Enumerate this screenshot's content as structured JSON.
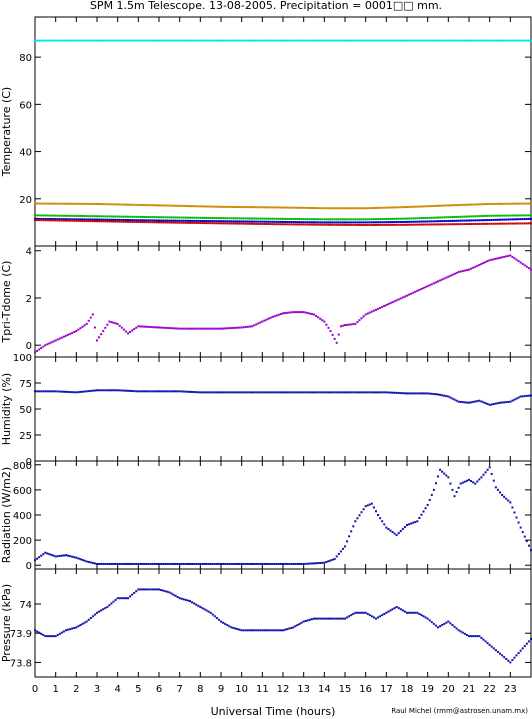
{
  "title": "SPM 1.5m Telescope. 13-08-2005. Precipitation = 0001□□ mm.",
  "credit": "Raul Michel (rmm@astrosen.unam.mx)",
  "x_axis": {
    "label": "Universal Time (hours)",
    "range": [
      0,
      24
    ],
    "ticks": [
      0,
      1,
      2,
      3,
      4,
      5,
      6,
      7,
      8,
      9,
      10,
      11,
      12,
      13,
      14,
      15,
      16,
      17,
      18,
      19,
      20,
      21,
      22,
      23
    ]
  },
  "chart_data": [
    {
      "type": "scatter",
      "panel": "temperature",
      "ylabel": "Temperature (C)",
      "ylim": [
        0,
        97
      ],
      "yticks": [
        20,
        40,
        60,
        80
      ],
      "series": [
        {
          "color": "#00e5e5",
          "x": [
            0,
            24
          ],
          "y": [
            87,
            87
          ]
        },
        {
          "color": "#cc8800",
          "x": [
            0,
            3,
            6,
            9,
            12,
            14,
            16,
            18,
            20,
            22,
            24
          ],
          "y": [
            18,
            17.8,
            17.2,
            16.6,
            16.3,
            16,
            16,
            16.5,
            17.2,
            17.8,
            18
          ]
        },
        {
          "color": "#00bb00",
          "x": [
            0,
            3,
            6,
            9,
            12,
            14,
            16,
            18,
            20,
            22,
            24
          ],
          "y": [
            13,
            12.6,
            12.2,
            11.8,
            11.5,
            11.3,
            11.3,
            11.6,
            12.2,
            12.8,
            13
          ]
        },
        {
          "color": "#0000cc",
          "x": [
            0,
            3,
            6,
            9,
            12,
            14,
            16,
            18,
            20,
            22,
            24
          ],
          "y": [
            11.5,
            11.2,
            10.8,
            10.5,
            10.2,
            10,
            10,
            10.2,
            10.6,
            11,
            11.5
          ]
        },
        {
          "color": "#cc0000",
          "x": [
            0,
            3,
            6,
            9,
            12,
            14,
            16,
            18,
            20,
            22,
            24
          ],
          "y": [
            11,
            10.5,
            10,
            9.6,
            9.2,
            9,
            8.9,
            9,
            9.2,
            9.4,
            9.6
          ]
        }
      ]
    },
    {
      "type": "scatter",
      "panel": "tpri-tdome",
      "ylabel": "Tpri-Tdome (C)",
      "ylim": [
        -0.5,
        4.2
      ],
      "yticks": [
        0,
        2,
        4
      ],
      "series": [
        {
          "color": "#9900cc",
          "x": [
            0,
            0.5,
            1,
            1.5,
            2,
            2.5,
            2.8,
            3,
            3.3,
            3.6,
            4,
            4.5,
            5,
            6,
            7,
            8,
            9,
            10,
            10.5,
            11,
            11.5,
            12,
            12.5,
            13,
            13.5,
            14,
            14.3,
            14.6,
            14.8,
            15,
            15.5,
            16,
            16.5,
            17,
            17.5,
            18,
            18.5,
            19,
            19.5,
            20,
            20.5,
            21,
            21.5,
            22,
            22.5,
            23,
            23.5,
            24
          ],
          "y": [
            -0.3,
            0,
            0.2,
            0.4,
            0.6,
            0.9,
            1.3,
            0.2,
            0.6,
            1,
            0.9,
            0.5,
            0.8,
            0.75,
            0.7,
            0.7,
            0.7,
            0.75,
            0.8,
            1.0,
            1.2,
            1.35,
            1.4,
            1.4,
            1.3,
            1.0,
            0.6,
            0.1,
            0.8,
            0.85,
            0.9,
            1.3,
            1.5,
            1.7,
            1.9,
            2.1,
            2.3,
            2.5,
            2.7,
            2.9,
            3.1,
            3.2,
            3.4,
            3.6,
            3.7,
            3.8,
            3.5,
            3.2
          ]
        }
      ]
    },
    {
      "type": "scatter",
      "panel": "humidity",
      "ylabel": "Humidity (%)",
      "ylim": [
        0,
        100
      ],
      "yticks": [
        0,
        25,
        50,
        75,
        100
      ],
      "series": [
        {
          "color": "#1111aa",
          "x": [
            0,
            1,
            2,
            3,
            4,
            5,
            6,
            7,
            8,
            9,
            10,
            11,
            12,
            13,
            14,
            15,
            16,
            17,
            18,
            19,
            19.5,
            20,
            20.5,
            21,
            21.5,
            22,
            22.5,
            23,
            23.5,
            24
          ],
          "y": [
            67,
            67,
            66,
            68,
            68,
            67,
            67,
            67,
            66,
            66,
            66,
            66,
            66,
            66,
            66,
            66,
            66,
            66,
            65,
            65,
            64,
            62,
            57,
            56,
            58,
            54,
            56,
            57,
            62,
            63
          ]
        }
      ]
    },
    {
      "type": "scatter",
      "panel": "radiation",
      "ylabel": "Radiation (W/m2)",
      "ylim": [
        -30,
        830
      ],
      "yticks": [
        0,
        200,
        400,
        600,
        800
      ],
      "series": [
        {
          "color": "#1111aa",
          "x": [
            0,
            0.5,
            1,
            1.5,
            2,
            2.5,
            3,
            4,
            5,
            6,
            7,
            8,
            9,
            10,
            11,
            12,
            13,
            14,
            14.5,
            15,
            15.5,
            16,
            16.3,
            16.6,
            17,
            17.5,
            18,
            18.5,
            19,
            19.3,
            19.6,
            20,
            20.3,
            20.6,
            21,
            21.3,
            21.6,
            22,
            22.3,
            22.6,
            23,
            23.5,
            24
          ],
          "y": [
            40,
            100,
            70,
            80,
            60,
            30,
            10,
            10,
            10,
            10,
            10,
            10,
            10,
            10,
            10,
            10,
            10,
            20,
            50,
            150,
            350,
            470,
            490,
            400,
            300,
            240,
            320,
            350,
            480,
            600,
            760,
            700,
            550,
            650,
            680,
            650,
            700,
            780,
            620,
            560,
            500,
            300,
            120
          ]
        }
      ]
    },
    {
      "type": "scatter",
      "panel": "pressure",
      "ylabel": "Pressure (kPa)",
      "ylim": [
        73.75,
        74.12
      ],
      "yticks": [
        73.8,
        73.9,
        74.0
      ],
      "series": [
        {
          "color": "#1111aa",
          "x": [
            0,
            0.5,
            1,
            1.5,
            2,
            2.5,
            3,
            3.5,
            4,
            4.5,
            5,
            5.5,
            6,
            6.5,
            7,
            7.5,
            8,
            8.5,
            9,
            9.5,
            10,
            10.5,
            11,
            11.5,
            12,
            12.5,
            13,
            13.5,
            14,
            14.5,
            15,
            15.5,
            16,
            16.5,
            17,
            17.5,
            18,
            18.5,
            19,
            19.5,
            20,
            20.5,
            21,
            21.5,
            22,
            22.5,
            23,
            23.5,
            24
          ],
          "y": [
            73.91,
            73.89,
            73.89,
            73.91,
            73.92,
            73.94,
            73.97,
            73.99,
            74.02,
            74.02,
            74.05,
            74.05,
            74.05,
            74.04,
            74.02,
            74.01,
            73.99,
            73.97,
            73.94,
            73.92,
            73.91,
            73.91,
            73.91,
            73.91,
            73.91,
            73.92,
            73.94,
            73.95,
            73.95,
            73.95,
            73.95,
            73.97,
            73.97,
            73.95,
            73.97,
            73.99,
            73.97,
            73.97,
            73.95,
            73.92,
            73.94,
            73.91,
            73.89,
            73.89,
            73.86,
            73.83,
            73.8,
            73.84,
            73.88
          ]
        }
      ]
    }
  ]
}
